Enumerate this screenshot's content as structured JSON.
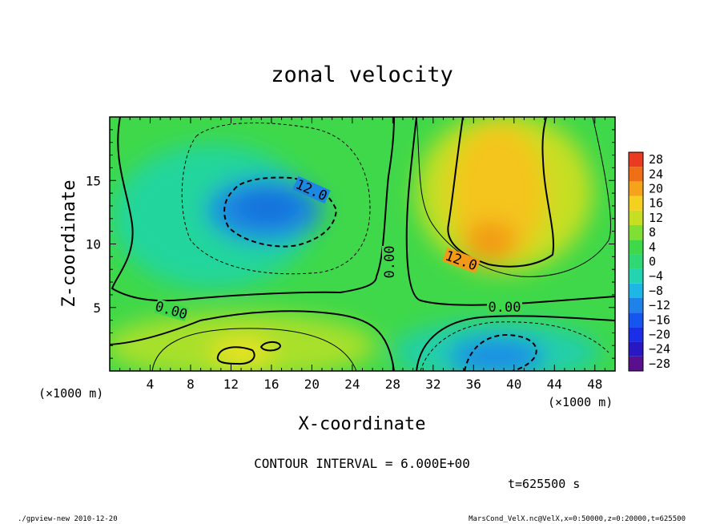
{
  "chart_data": {
    "type": "heatmap",
    "title": "zonal velocity",
    "xlabel": "X-coordinate",
    "ylabel": "Z-coordinate",
    "x_unit_left": "(×1000 m)",
    "x_unit_right": "(×1000 m)",
    "xlim": [
      0,
      50
    ],
    "ylim": [
      0,
      20
    ],
    "x_ticks": [
      "4",
      "8",
      "12",
      "16",
      "20",
      "24",
      "28",
      "32",
      "36",
      "40",
      "44",
      "48"
    ],
    "y_ticks": [
      "5",
      "10",
      "15"
    ],
    "colorbar": {
      "labels": [
        "28",
        "24",
        "20",
        "16",
        "12",
        "8",
        "4",
        "0",
        "−4",
        "−8",
        "−12",
        "−16",
        "−20",
        "−24",
        "−28"
      ],
      "values": [
        28,
        24,
        20,
        16,
        12,
        8,
        4,
        0,
        -4,
        -8,
        -12,
        -16,
        -20,
        -24,
        -28
      ]
    },
    "contour_labels": [
      "12.0",
      "12.0",
      "0.00",
      "0.00",
      "0.00"
    ],
    "features": [
      {
        "sign": "negative",
        "center_x": 17,
        "center_z": 13,
        "peak": -15
      },
      {
        "sign": "positive",
        "center_x": 36,
        "center_z": 12,
        "peak": 17
      },
      {
        "sign": "negative",
        "center_x": 39,
        "center_z": 1.5,
        "peak": -17
      },
      {
        "sign": "positive",
        "center_x": 14,
        "center_z": 1.5,
        "peak": 13
      }
    ],
    "contour_interval_text": "CONTOUR INTERVAL = 6.000E+00",
    "time_text": "t=625500 s"
  },
  "footer": {
    "left": "./gpview-new  2010-12-20",
    "right": "MarsCond_VelX.nc@VelX,x=0:50000,z=0:20000,t=625500"
  }
}
